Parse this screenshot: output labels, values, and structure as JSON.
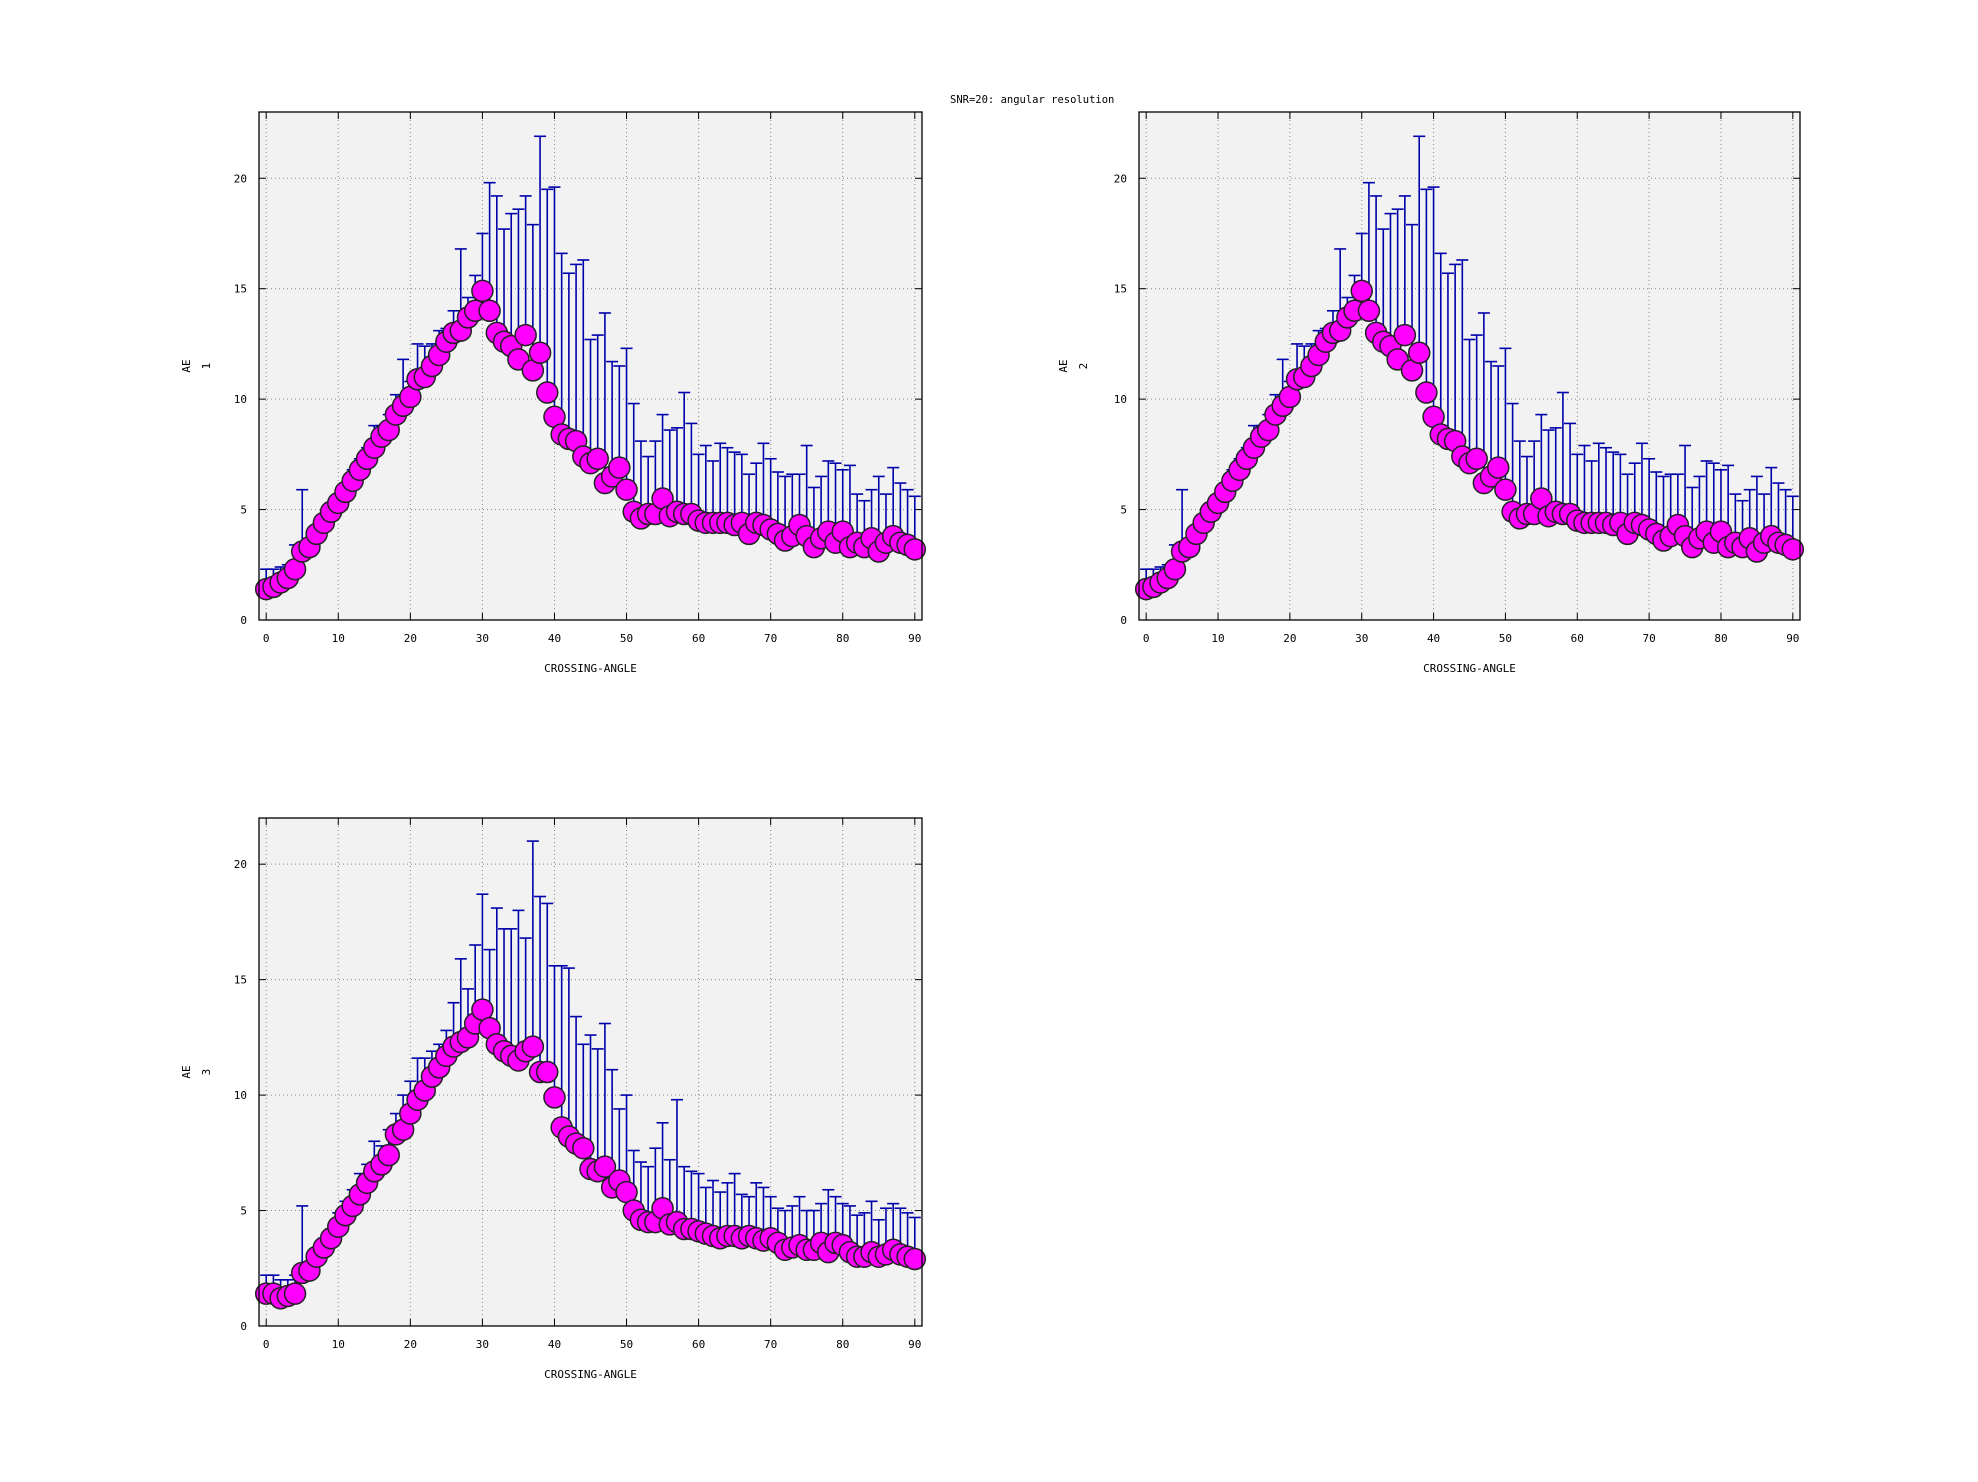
{
  "title": "SNR=20: angular resolution",
  "chart_data": [
    {
      "type": "scatter",
      "panel": "AE 1",
      "xlabel": "CROSSING-ANGLE",
      "ylabel_lines": [
        "AE",
        "1"
      ],
      "xlim": [
        -1,
        91
      ],
      "ylim": [
        0,
        23
      ],
      "xticks": [
        0,
        10,
        20,
        30,
        40,
        50,
        60,
        70,
        80,
        90
      ],
      "yticks": [
        0,
        5,
        10,
        15,
        20
      ],
      "grid": true,
      "marker_color": "#ff00ff",
      "errorbar_color": "#0000aa",
      "x": [
        0,
        1,
        2,
        3,
        4,
        5,
        6,
        7,
        8,
        9,
        10,
        11,
        12,
        13,
        14,
        15,
        16,
        17,
        18,
        19,
        20,
        21,
        22,
        23,
        24,
        25,
        26,
        27,
        28,
        29,
        30,
        31,
        32,
        33,
        34,
        35,
        36,
        37,
        38,
        39,
        40,
        41,
        42,
        43,
        44,
        45,
        46,
        47,
        48,
        49,
        50,
        51,
        52,
        53,
        54,
        55,
        56,
        57,
        58,
        59,
        60,
        61,
        62,
        63,
        64,
        65,
        66,
        67,
        68,
        69,
        70,
        71,
        72,
        73,
        74,
        75,
        76,
        77,
        78,
        79,
        80,
        81,
        82,
        83,
        84,
        85,
        86,
        87,
        88,
        89,
        90
      ],
      "y": [
        1.4,
        1.5,
        1.7,
        1.9,
        2.3,
        3.1,
        3.3,
        3.9,
        4.4,
        4.9,
        5.3,
        5.8,
        6.3,
        6.8,
        7.3,
        7.8,
        8.3,
        8.6,
        9.3,
        9.7,
        10.1,
        10.9,
        11.0,
        11.5,
        12.0,
        12.6,
        13.0,
        13.1,
        13.7,
        14.0,
        14.9,
        14.0,
        13.0,
        12.6,
        12.4,
        11.8,
        12.9,
        11.3,
        12.1,
        10.3,
        9.2,
        8.4,
        8.2,
        8.1,
        7.4,
        7.1,
        7.3,
        6.2,
        6.5,
        6.9,
        5.9,
        4.9,
        4.6,
        4.8,
        4.8,
        5.5,
        4.7,
        4.9,
        4.8,
        4.8,
        4.5,
        4.4,
        4.4,
        4.4,
        4.4,
        4.3,
        4.4,
        3.9,
        4.4,
        4.3,
        4.1,
        3.9,
        3.6,
        3.8,
        4.3,
        3.8,
        3.3,
        3.7,
        4.0,
        3.5,
        4.0,
        3.3,
        3.5,
        3.3,
        3.7,
        3.1,
        3.5,
        3.8,
        3.5,
        3.4,
        3.2
      ],
      "yerr_upper": [
        2.3,
        2.3,
        2.4,
        2.5,
        3.4,
        5.9,
        3.6,
        4.2,
        4.7,
        5.3,
        5.6,
        6.2,
        6.8,
        7.3,
        7.8,
        8.8,
        8.8,
        9.3,
        10.2,
        11.8,
        10.8,
        12.5,
        12.4,
        12.5,
        13.1,
        13.2,
        14.0,
        16.8,
        14.6,
        15.6,
        17.5,
        19.8,
        19.2,
        17.7,
        18.4,
        18.6,
        19.2,
        17.9,
        21.9,
        19.5,
        19.6,
        16.6,
        15.7,
        16.1,
        16.3,
        12.7,
        12.9,
        13.9,
        11.7,
        11.5,
        12.3,
        9.8,
        8.1,
        7.4,
        8.1,
        9.3,
        8.6,
        8.7,
        10.3,
        8.9,
        7.5,
        7.9,
        7.2,
        8.0,
        7.8,
        7.6,
        7.5,
        6.6,
        7.1,
        8.0,
        7.3,
        6.7,
        6.5,
        6.6,
        6.6,
        7.9,
        6.0,
        6.5,
        7.2,
        7.1,
        6.8,
        7.0,
        5.7,
        5.4,
        5.9,
        6.5,
        5.7,
        6.9,
        6.2,
        5.9,
        5.6
      ]
    },
    {
      "type": "scatter",
      "panel": "AE 2",
      "xlabel": "CROSSING-ANGLE",
      "ylabel_lines": [
        "AE",
        "2"
      ],
      "xlim": [
        -1,
        91
      ],
      "ylim": [
        0,
        23
      ],
      "xticks": [
        0,
        10,
        20,
        30,
        40,
        50,
        60,
        70,
        80,
        90
      ],
      "yticks": [
        0,
        5,
        10,
        15,
        20
      ],
      "grid": true,
      "marker_color": "#ff00ff",
      "errorbar_color": "#0000aa",
      "x": [
        0,
        1,
        2,
        3,
        4,
        5,
        6,
        7,
        8,
        9,
        10,
        11,
        12,
        13,
        14,
        15,
        16,
        17,
        18,
        19,
        20,
        21,
        22,
        23,
        24,
        25,
        26,
        27,
        28,
        29,
        30,
        31,
        32,
        33,
        34,
        35,
        36,
        37,
        38,
        39,
        40,
        41,
        42,
        43,
        44,
        45,
        46,
        47,
        48,
        49,
        50,
        51,
        52,
        53,
        54,
        55,
        56,
        57,
        58,
        59,
        60,
        61,
        62,
        63,
        64,
        65,
        66,
        67,
        68,
        69,
        70,
        71,
        72,
        73,
        74,
        75,
        76,
        77,
        78,
        79,
        80,
        81,
        82,
        83,
        84,
        85,
        86,
        87,
        88,
        89,
        90
      ],
      "y": [
        1.4,
        1.5,
        1.7,
        1.9,
        2.3,
        3.1,
        3.3,
        3.9,
        4.4,
        4.9,
        5.3,
        5.8,
        6.3,
        6.8,
        7.3,
        7.8,
        8.3,
        8.6,
        9.3,
        9.7,
        10.1,
        10.9,
        11.0,
        11.5,
        12.0,
        12.6,
        13.0,
        13.1,
        13.7,
        14.0,
        14.9,
        14.0,
        13.0,
        12.6,
        12.4,
        11.8,
        12.9,
        11.3,
        12.1,
        10.3,
        9.2,
        8.4,
        8.2,
        8.1,
        7.4,
        7.1,
        7.3,
        6.2,
        6.5,
        6.9,
        5.9,
        4.9,
        4.6,
        4.8,
        4.8,
        5.5,
        4.7,
        4.9,
        4.8,
        4.8,
        4.5,
        4.4,
        4.4,
        4.4,
        4.4,
        4.3,
        4.4,
        3.9,
        4.4,
        4.3,
        4.1,
        3.9,
        3.6,
        3.8,
        4.3,
        3.8,
        3.3,
        3.7,
        4.0,
        3.5,
        4.0,
        3.3,
        3.5,
        3.3,
        3.7,
        3.1,
        3.5,
        3.8,
        3.5,
        3.4,
        3.2
      ],
      "yerr_upper": [
        2.3,
        2.3,
        2.4,
        2.5,
        3.4,
        5.9,
        3.6,
        4.2,
        4.7,
        5.3,
        5.6,
        6.2,
        6.8,
        7.3,
        7.8,
        8.8,
        8.8,
        9.3,
        10.2,
        11.8,
        10.8,
        12.5,
        12.4,
        12.5,
        13.1,
        13.2,
        14.0,
        16.8,
        14.6,
        15.6,
        17.5,
        19.8,
        19.2,
        17.7,
        18.4,
        18.6,
        19.2,
        17.9,
        21.9,
        19.5,
        19.6,
        16.6,
        15.7,
        16.1,
        16.3,
        12.7,
        12.9,
        13.9,
        11.7,
        11.5,
        12.3,
        9.8,
        8.1,
        7.4,
        8.1,
        9.3,
        8.6,
        8.7,
        10.3,
        8.9,
        7.5,
        7.9,
        7.2,
        8.0,
        7.8,
        7.6,
        7.5,
        6.6,
        7.1,
        8.0,
        7.3,
        6.7,
        6.5,
        6.6,
        6.6,
        7.9,
        6.0,
        6.5,
        7.2,
        7.1,
        6.8,
        7.0,
        5.7,
        5.4,
        5.9,
        6.5,
        5.7,
        6.9,
        6.2,
        5.9,
        5.6
      ]
    },
    {
      "type": "scatter",
      "panel": "AE 3",
      "xlabel": "CROSSING-ANGLE",
      "ylabel_lines": [
        "AE",
        "3"
      ],
      "xlim": [
        -1,
        91
      ],
      "ylim": [
        0,
        22
      ],
      "xticks": [
        0,
        10,
        20,
        30,
        40,
        50,
        60,
        70,
        80,
        90
      ],
      "yticks": [
        0,
        5,
        10,
        15,
        20
      ],
      "grid": true,
      "marker_color": "#ff00ff",
      "errorbar_color": "#0000aa",
      "x": [
        0,
        1,
        2,
        3,
        4,
        5,
        6,
        7,
        8,
        9,
        10,
        11,
        12,
        13,
        14,
        15,
        16,
        17,
        18,
        19,
        20,
        21,
        22,
        23,
        24,
        25,
        26,
        27,
        28,
        29,
        30,
        31,
        32,
        33,
        34,
        35,
        36,
        37,
        38,
        39,
        40,
        41,
        42,
        43,
        44,
        45,
        46,
        47,
        48,
        49,
        50,
        51,
        52,
        53,
        54,
        55,
        56,
        57,
        58,
        59,
        60,
        61,
        62,
        63,
        64,
        65,
        66,
        67,
        68,
        69,
        70,
        71,
        72,
        73,
        74,
        75,
        76,
        77,
        78,
        79,
        80,
        81,
        82,
        83,
        84,
        85,
        86,
        87,
        88,
        89,
        90
      ],
      "y": [
        1.4,
        1.4,
        1.2,
        1.3,
        1.4,
        2.3,
        2.4,
        3.0,
        3.4,
        3.8,
        4.3,
        4.8,
        5.2,
        5.7,
        6.2,
        6.7,
        7.0,
        7.4,
        8.3,
        8.5,
        9.2,
        9.8,
        10.2,
        10.8,
        11.2,
        11.7,
        12.1,
        12.3,
        12.5,
        13.1,
        13.7,
        12.9,
        12.2,
        11.9,
        11.7,
        11.5,
        11.9,
        12.1,
        11.0,
        11.0,
        9.9,
        8.6,
        8.2,
        7.9,
        7.7,
        6.8,
        6.7,
        6.9,
        6.0,
        6.3,
        5.8,
        5.0,
        4.6,
        4.5,
        4.5,
        5.1,
        4.4,
        4.5,
        4.2,
        4.2,
        4.1,
        4.0,
        3.9,
        3.8,
        3.9,
        3.9,
        3.8,
        3.9,
        3.8,
        3.7,
        3.8,
        3.6,
        3.3,
        3.4,
        3.5,
        3.3,
        3.3,
        3.6,
        3.2,
        3.6,
        3.5,
        3.2,
        3.0,
        3.0,
        3.2,
        3.0,
        3.1,
        3.3,
        3.1,
        3.0,
        2.9
      ],
      "yerr_upper": [
        2.2,
        2.2,
        2.0,
        2.0,
        2.2,
        5.2,
        2.7,
        3.3,
        3.8,
        4.2,
        4.9,
        5.4,
        5.9,
        6.6,
        7.0,
        8.0,
        7.8,
        8.5,
        9.2,
        10.0,
        10.6,
        11.6,
        11.6,
        11.9,
        12.2,
        12.8,
        14.0,
        15.9,
        14.6,
        16.5,
        18.7,
        16.3,
        18.1,
        17.2,
        17.2,
        18.0,
        16.8,
        21.0,
        18.6,
        18.3,
        15.6,
        15.6,
        15.5,
        13.4,
        12.2,
        12.6,
        12.0,
        13.1,
        11.1,
        9.4,
        10.0,
        7.6,
        7.1,
        6.9,
        7.7,
        8.8,
        7.2,
        9.8,
        6.9,
        6.7,
        6.6,
        6.0,
        6.3,
        5.8,
        6.2,
        6.6,
        5.7,
        5.6,
        6.2,
        6.0,
        5.6,
        5.1,
        5.0,
        5.2,
        5.6,
        5.0,
        5.0,
        5.3,
        5.9,
        5.6,
        5.3,
        5.2,
        4.8,
        4.9,
        5.4,
        4.6,
        5.1,
        5.3,
        5.1,
        4.9,
        4.7
      ]
    }
  ]
}
